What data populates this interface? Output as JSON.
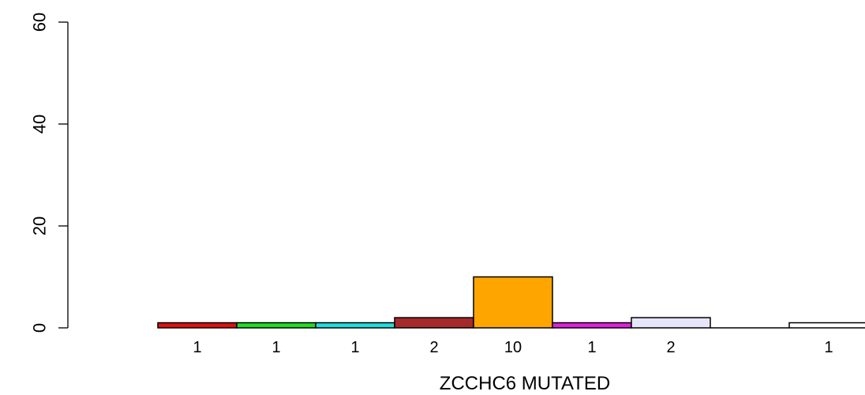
{
  "chart_data": {
    "type": "bar",
    "xlabel": "ZCCHC6 MUTATED",
    "ylabel": "",
    "ylim": [
      0,
      60
    ],
    "yticks": [
      0,
      20,
      40,
      60
    ],
    "grid": false,
    "bars": [
      {
        "value": 1,
        "label": "1",
        "color": "#dd1111"
      },
      {
        "value": 1,
        "label": "1",
        "color": "#22dd22"
      },
      {
        "value": 1,
        "label": "1",
        "color": "#22dddd"
      },
      {
        "value": 2,
        "label": "2",
        "color": "#a52a2a"
      },
      {
        "value": 10,
        "label": "10",
        "color": "#ffa500"
      },
      {
        "value": 1,
        "label": "1",
        "color": "#dd22dd"
      },
      {
        "value": 2,
        "label": "2",
        "color": "#e6e6fa"
      },
      {
        "value": 0,
        "label": "",
        "color": "#ffffff"
      },
      {
        "value": 1,
        "label": "1",
        "color": "#ffffff"
      }
    ]
  }
}
